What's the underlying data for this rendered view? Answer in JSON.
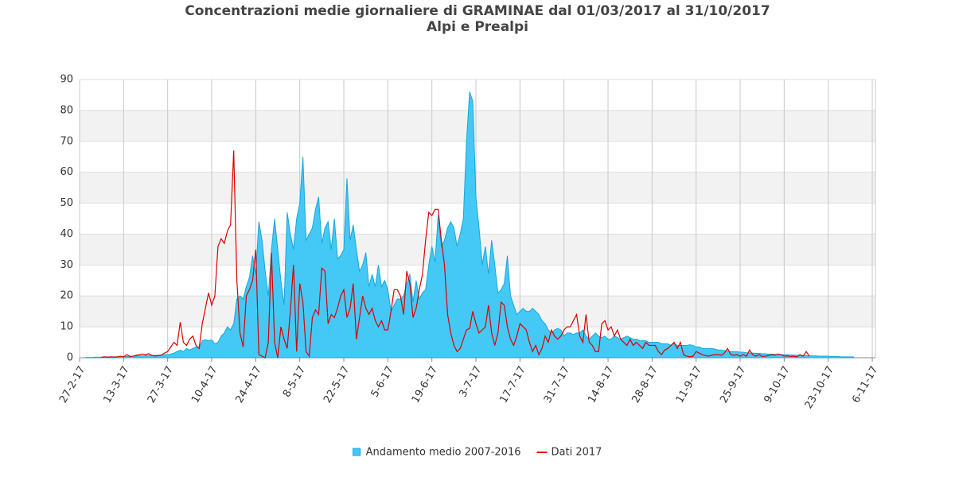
{
  "chart_data": {
    "type": "line",
    "title": "Concentrazioni medie giornaliere di GRAMINAE dal 01/03/2017 al 31/10/2017",
    "subtitle": "Alpi e Prealpi",
    "x": [
      "2017-03-01",
      "2017-03-02",
      "2017-03-03",
      "2017-03-04",
      "2017-03-05",
      "2017-03-06",
      "2017-03-07",
      "2017-03-08",
      "2017-03-09",
      "2017-03-10",
      "2017-03-11",
      "2017-03-12",
      "2017-03-13",
      "2017-03-14",
      "2017-03-15",
      "2017-03-16",
      "2017-03-17",
      "2017-03-18",
      "2017-03-19",
      "2017-03-20",
      "2017-03-21",
      "2017-03-22",
      "2017-03-23",
      "2017-03-24",
      "2017-03-25",
      "2017-03-26",
      "2017-03-27",
      "2017-03-28",
      "2017-03-29",
      "2017-03-30",
      "2017-03-31",
      "2017-04-01",
      "2017-04-02",
      "2017-04-03",
      "2017-04-04",
      "2017-04-05",
      "2017-04-06",
      "2017-04-07",
      "2017-04-08",
      "2017-04-09",
      "2017-04-10",
      "2017-04-11",
      "2017-04-12",
      "2017-04-13",
      "2017-04-14",
      "2017-04-15",
      "2017-04-16",
      "2017-04-17",
      "2017-04-18",
      "2017-04-19",
      "2017-04-20",
      "2017-04-21",
      "2017-04-22",
      "2017-04-23",
      "2017-04-24",
      "2017-04-25",
      "2017-04-26",
      "2017-04-27",
      "2017-04-28",
      "2017-04-29",
      "2017-04-30",
      "2017-05-01",
      "2017-05-02",
      "2017-05-03",
      "2017-05-04",
      "2017-05-05",
      "2017-05-06",
      "2017-05-07",
      "2017-05-08",
      "2017-05-09",
      "2017-05-10",
      "2017-05-11",
      "2017-05-12",
      "2017-05-13",
      "2017-05-14",
      "2017-05-15",
      "2017-05-16",
      "2017-05-17",
      "2017-05-18",
      "2017-05-19",
      "2017-05-20",
      "2017-05-21",
      "2017-05-22",
      "2017-05-23",
      "2017-05-24",
      "2017-05-25",
      "2017-05-26",
      "2017-05-27",
      "2017-05-28",
      "2017-05-29",
      "2017-05-30",
      "2017-05-31",
      "2017-06-01",
      "2017-06-02",
      "2017-06-03",
      "2017-06-04",
      "2017-06-05",
      "2017-06-06",
      "2017-06-07",
      "2017-06-08",
      "2017-06-09",
      "2017-06-10",
      "2017-06-11",
      "2017-06-12",
      "2017-06-13",
      "2017-06-14",
      "2017-06-15",
      "2017-06-16",
      "2017-06-17",
      "2017-06-18",
      "2017-06-19",
      "2017-06-20",
      "2017-06-21",
      "2017-06-22",
      "2017-06-23",
      "2017-06-24",
      "2017-06-25",
      "2017-06-26",
      "2017-06-27",
      "2017-06-28",
      "2017-06-29",
      "2017-06-30",
      "2017-07-01",
      "2017-07-02",
      "2017-07-03",
      "2017-07-04",
      "2017-07-05",
      "2017-07-06",
      "2017-07-07",
      "2017-07-08",
      "2017-07-09",
      "2017-07-10",
      "2017-07-11",
      "2017-07-12",
      "2017-07-13",
      "2017-07-14",
      "2017-07-15",
      "2017-07-16",
      "2017-07-17",
      "2017-07-18",
      "2017-07-19",
      "2017-07-20",
      "2017-07-21",
      "2017-07-22",
      "2017-07-23",
      "2017-07-24",
      "2017-07-25",
      "2017-07-26",
      "2017-07-27",
      "2017-07-28",
      "2017-07-29",
      "2017-07-30",
      "2017-07-31",
      "2017-08-01",
      "2017-08-02",
      "2017-08-03",
      "2017-08-04",
      "2017-08-05",
      "2017-08-06",
      "2017-08-07",
      "2017-08-08",
      "2017-08-09",
      "2017-08-10",
      "2017-08-11",
      "2017-08-12",
      "2017-08-13",
      "2017-08-14",
      "2017-08-15",
      "2017-08-16",
      "2017-08-17",
      "2017-08-18",
      "2017-08-19",
      "2017-08-20",
      "2017-08-21",
      "2017-08-22",
      "2017-08-23",
      "2017-08-24",
      "2017-08-25",
      "2017-08-26",
      "2017-08-27",
      "2017-08-28",
      "2017-08-29",
      "2017-08-30",
      "2017-08-31",
      "2017-09-01",
      "2017-09-02",
      "2017-09-03",
      "2017-09-04",
      "2017-09-05",
      "2017-09-06",
      "2017-09-07",
      "2017-09-08",
      "2017-09-09",
      "2017-09-10",
      "2017-09-11",
      "2017-09-12",
      "2017-09-13",
      "2017-09-14",
      "2017-09-15",
      "2017-09-16",
      "2017-09-17",
      "2017-09-18",
      "2017-09-19",
      "2017-09-20",
      "2017-09-21",
      "2017-09-22",
      "2017-09-23",
      "2017-09-24",
      "2017-09-25",
      "2017-09-26",
      "2017-09-27",
      "2017-09-28",
      "2017-09-29",
      "2017-09-30",
      "2017-10-01",
      "2017-10-02",
      "2017-10-03",
      "2017-10-04",
      "2017-10-05",
      "2017-10-06",
      "2017-10-07",
      "2017-10-08",
      "2017-10-09",
      "2017-10-10",
      "2017-10-11",
      "2017-10-12",
      "2017-10-13",
      "2017-10-14",
      "2017-10-15",
      "2017-10-16",
      "2017-10-17",
      "2017-10-18",
      "2017-10-19",
      "2017-10-20",
      "2017-10-21",
      "2017-10-22",
      "2017-10-23",
      "2017-10-24",
      "2017-10-25",
      "2017-10-26",
      "2017-10-27",
      "2017-10-28",
      "2017-10-29",
      "2017-10-30",
      "2017-10-31"
    ],
    "series": [
      {
        "name": "Andamento medio 2007-2016",
        "type": "area",
        "color": "#44c8f5",
        "stroke": "#1aa7d8",
        "values": [
          0.1,
          0.1,
          0.1,
          0.2,
          0.2,
          0.2,
          0.2,
          0.3,
          0.3,
          0.3,
          0.3,
          0.4,
          0.4,
          0.4,
          0.5,
          0.5,
          0.5,
          0.6,
          0.6,
          0.7,
          0.7,
          0.8,
          0.8,
          0.8,
          0.9,
          1,
          1,
          1.2,
          1.5,
          2,
          2.5,
          2,
          3,
          2.5,
          3,
          3.5,
          3,
          5.5,
          5.8,
          5.5,
          5.8,
          4.5,
          5,
          7,
          8,
          10,
          9,
          11,
          19,
          20,
          19,
          23,
          26,
          33,
          27,
          44,
          38,
          28,
          20,
          35,
          45,
          35,
          25,
          17,
          47,
          40,
          35,
          45,
          50,
          65,
          38,
          40,
          42,
          48,
          52,
          37,
          42,
          44,
          35,
          45,
          32,
          33,
          35,
          58,
          38,
          43,
          35,
          28,
          30,
          34,
          23,
          27,
          23,
          30,
          23,
          25,
          22,
          15,
          17,
          19,
          19,
          20,
          24,
          27,
          18,
          25,
          19,
          21,
          22,
          30,
          36,
          31,
          46,
          36,
          38,
          42,
          44,
          42,
          36,
          40,
          45,
          70,
          86,
          83,
          52,
          42,
          30,
          36,
          27,
          38,
          30,
          21,
          22,
          24,
          33,
          20,
          17,
          14,
          15,
          16,
          15,
          15,
          16,
          15,
          14,
          12,
          11,
          9,
          8,
          9,
          9.5,
          9,
          7,
          8,
          8,
          7.5,
          8,
          8,
          9,
          7,
          6,
          7,
          8,
          7,
          6.5,
          7,
          6,
          6,
          7,
          6.5,
          6,
          6.5,
          7,
          6.5,
          6,
          6,
          5.5,
          5.5,
          5.5,
          5,
          5,
          5,
          5,
          4.5,
          4.5,
          4.5,
          4,
          4.5,
          4,
          4,
          4,
          4,
          4.2,
          4,
          3.5,
          3.5,
          3,
          3,
          3,
          3,
          2.8,
          2.5,
          2.5,
          2.3,
          2.2,
          2,
          2,
          2,
          1.8,
          1.8,
          1.6,
          1.5,
          1.5,
          1.4,
          1.4,
          1.3,
          1.3,
          1.2,
          1.2,
          1.1,
          1.1,
          1,
          1,
          1,
          0.9,
          0.9,
          0.8,
          0.8,
          0.7,
          0.7,
          0.6,
          0.6,
          0.6,
          0.5,
          0.5,
          0.5,
          0.5,
          0.4,
          0.4,
          0.4,
          0.3,
          0.3,
          0.3,
          0.3,
          0.3
        ]
      },
      {
        "name": "Dati 2017",
        "type": "line",
        "color": "#dd0000",
        "values": [
          null,
          null,
          null,
          null,
          null,
          0.2,
          0.3,
          0.2,
          0.3,
          0.2,
          0.3,
          0.5,
          0.3,
          1,
          0.4,
          0.5,
          0.8,
          1,
          1.2,
          1,
          1.3,
          0.8,
          0.5,
          0.7,
          0.8,
          1.5,
          2,
          3.5,
          5,
          4,
          11.5,
          5,
          4,
          6,
          7,
          4,
          3,
          11,
          16,
          21,
          17,
          20,
          36,
          38.5,
          37,
          41,
          43,
          67,
          25,
          8,
          3.5,
          20,
          22,
          25,
          35,
          1,
          0.5,
          0,
          5,
          34,
          5,
          0,
          10,
          6,
          3,
          15,
          30,
          2,
          24,
          18,
          2,
          0.5,
          13,
          15.5,
          14,
          29,
          28,
          11,
          14,
          13,
          16,
          20,
          22,
          13,
          16,
          24,
          6,
          13,
          20,
          16,
          14,
          16,
          12,
          10,
          12,
          9,
          9,
          15,
          22,
          22,
          20,
          14,
          28,
          24,
          13,
          16,
          22,
          27,
          38,
          47,
          46,
          48,
          48,
          38,
          30,
          14,
          8,
          4,
          2,
          3,
          6,
          9,
          9.5,
          15,
          11,
          8,
          9,
          10,
          17,
          8,
          4,
          8,
          18,
          17,
          10,
          6,
          4,
          7,
          11,
          10,
          9,
          5,
          2,
          4,
          1,
          3,
          7,
          5,
          9,
          7,
          6,
          7,
          9,
          10,
          10,
          12,
          14,
          7,
          5,
          14,
          5,
          4,
          2,
          2,
          11,
          12,
          9,
          10,
          7,
          9,
          6,
          5,
          4,
          6,
          4,
          5,
          4,
          3,
          5,
          4,
          4,
          4,
          2,
          1,
          2.5,
          3,
          4,
          5,
          3,
          5,
          1,
          0.5,
          0.3,
          0.5,
          2,
          1.5,
          1,
          0.7,
          0.5,
          0.8,
          1,
          1,
          0.8,
          1.5,
          3,
          1,
          0.8,
          1,
          0.5,
          1,
          0.5,
          2.5,
          1,
          0.5,
          1,
          0.4,
          0.5,
          0.7,
          1,
          0.8,
          1.2,
          1,
          0.5,
          0.6,
          0.4,
          0.5,
          0.3,
          1,
          0.5,
          2,
          0.5,
          null,
          null,
          null,
          null,
          null,
          null,
          null,
          null,
          null,
          null,
          null,
          null,
          null,
          null
        ]
      }
    ],
    "xlim": [
      "2017-02-27",
      "2017-11-07"
    ],
    "xticks": [
      {
        "value": "2017-02-27",
        "label": "27-2-17"
      },
      {
        "value": "2017-03-13",
        "label": "13-3-17"
      },
      {
        "value": "2017-03-27",
        "label": "27-3-17"
      },
      {
        "value": "2017-04-10",
        "label": "10-4-17"
      },
      {
        "value": "2017-04-24",
        "label": "24-4-17"
      },
      {
        "value": "2017-05-08",
        "label": "8-5-17"
      },
      {
        "value": "2017-05-22",
        "label": "22-5-17"
      },
      {
        "value": "2017-06-05",
        "label": "5-6-17"
      },
      {
        "value": "2017-06-19",
        "label": "19-6-17"
      },
      {
        "value": "2017-07-03",
        "label": "3-7-17"
      },
      {
        "value": "2017-07-17",
        "label": "17-7-17"
      },
      {
        "value": "2017-07-31",
        "label": "31-7-17"
      },
      {
        "value": "2017-08-14",
        "label": "14-8-17"
      },
      {
        "value": "2017-08-28",
        "label": "28-8-17"
      },
      {
        "value": "2017-09-11",
        "label": "11-9-17"
      },
      {
        "value": "2017-09-25",
        "label": "25-9-17"
      },
      {
        "value": "2017-10-09",
        "label": "9-10-17"
      },
      {
        "value": "2017-10-23",
        "label": "23-10-17"
      },
      {
        "value": "2017-11-06",
        "label": "6-11-17"
      }
    ],
    "ylim": [
      0,
      90
    ],
    "yticks": [
      0,
      10,
      20,
      30,
      40,
      50,
      60,
      70,
      80,
      90
    ],
    "grid": true,
    "legend": "bottom"
  }
}
